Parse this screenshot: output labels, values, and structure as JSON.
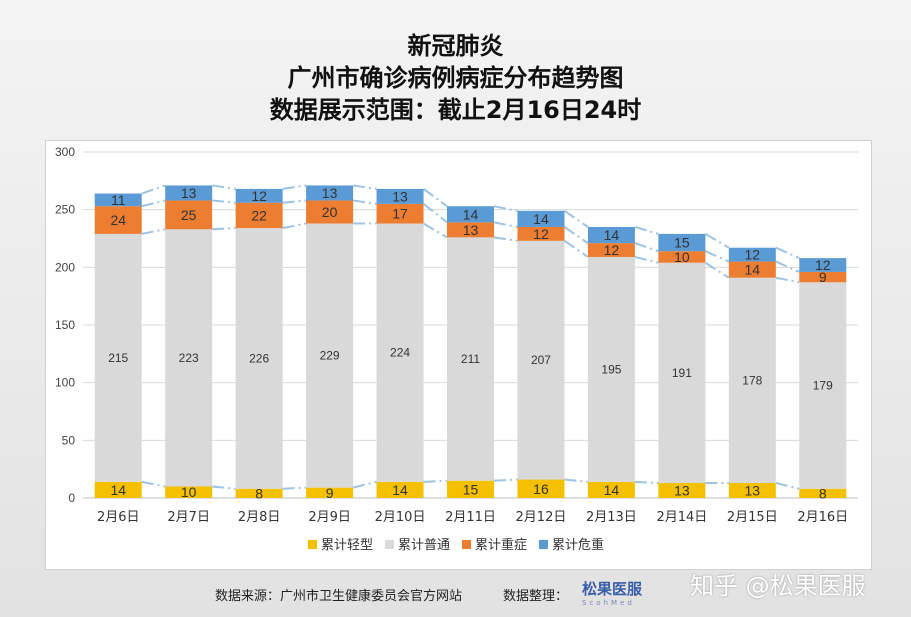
{
  "chart_data": {
    "type": "bar",
    "stacked": true,
    "title": [
      "新冠肺炎",
      "广州市确诊病例病症分布趋势图",
      "数据展示范围：截止2月16日24时"
    ],
    "categories": [
      "2月6日",
      "2月7日",
      "2月8日",
      "2月9日",
      "2月10日",
      "2月11日",
      "2月12日",
      "2月13日",
      "2月14日",
      "2月15日",
      "2月16日"
    ],
    "series": [
      {
        "name": "累计轻型",
        "color": "#f5c000",
        "values": [
          14,
          10,
          8,
          9,
          14,
          15,
          16,
          14,
          13,
          13,
          8
        ]
      },
      {
        "name": "累计普通",
        "color": "#d9d9d9",
        "values": [
          215,
          223,
          226,
          229,
          224,
          211,
          207,
          195,
          191,
          178,
          179
        ]
      },
      {
        "name": "累计重症",
        "color": "#ed7d31",
        "values": [
          24,
          25,
          22,
          20,
          17,
          13,
          12,
          12,
          10,
          14,
          9
        ]
      },
      {
        "name": "累计危重",
        "color": "#5b9bd5",
        "values": [
          11,
          13,
          12,
          13,
          13,
          14,
          14,
          14,
          15,
          12,
          12
        ]
      }
    ],
    "ylim": [
      0,
      300
    ],
    "yticks": [
      0,
      50,
      100,
      150,
      200,
      250,
      300
    ],
    "grid": true,
    "legend": "bottom",
    "series_lines_color": "#9dc3e6"
  },
  "footer": {
    "source": "数据来源：广州市卫生健康委员会官方网站",
    "organizer": "数据整理：",
    "logo_text": "松果医服",
    "logo_sub": "ScohMed",
    "watermark": "知乎 @松果医服"
  }
}
